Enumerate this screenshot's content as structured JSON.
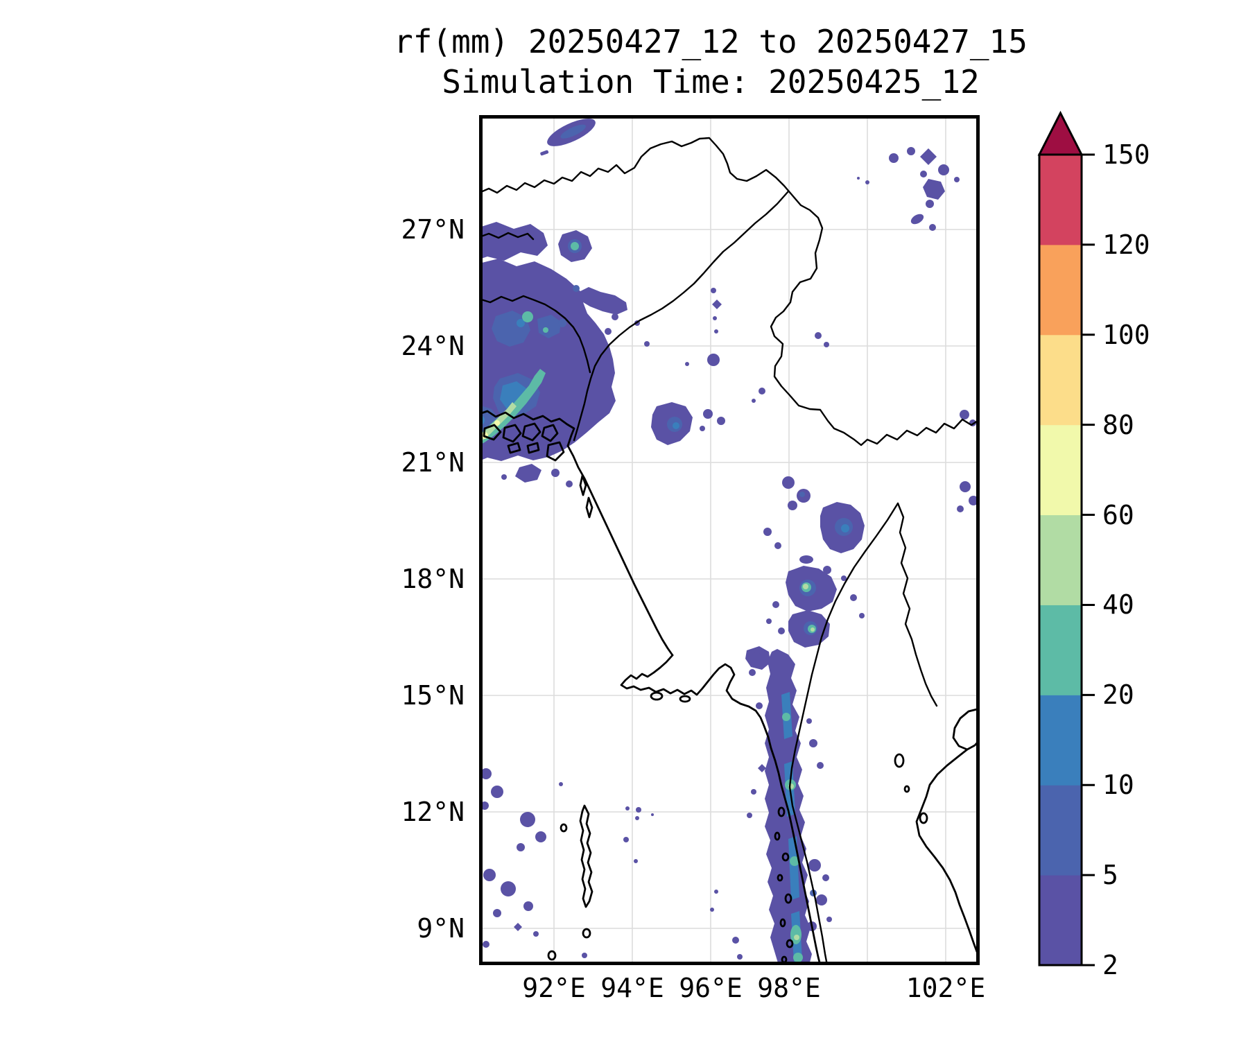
{
  "title": {
    "line1": "rf(mm) 20250427_12 to 20250427_15",
    "line2": "Simulation Time: 20250425_12"
  },
  "map_axes": {
    "x_ticks": [
      {
        "label": "92°E",
        "lon": 92
      },
      {
        "label": "94°E",
        "lon": 94
      },
      {
        "label": "96°E",
        "lon": 96
      },
      {
        "label": "98°E",
        "lon": 98
      },
      {
        "label": "102°E",
        "lon": 102
      }
    ],
    "x_grid_only_lons": [
      100
    ],
    "y_ticks": [
      {
        "label": "27°N",
        "lat": 27
      },
      {
        "label": "24°N",
        "lat": 24
      },
      {
        "label": "21°N",
        "lat": 21
      },
      {
        "label": "18°N",
        "lat": 18
      },
      {
        "label": "15°N",
        "lat": 15
      },
      {
        "label": "12°N",
        "lat": 12
      },
      {
        "label": "9°N",
        "lat": 9
      }
    ]
  },
  "colorbar": {
    "tick_labels": [
      "2",
      "5",
      "10",
      "20",
      "40",
      "60",
      "80",
      "100",
      "120",
      "150"
    ],
    "segment_colors_bottom_to_top": [
      "#5A52A5",
      "#4B64AE",
      "#3A7FBC",
      "#5DBBA6",
      "#B1DCA4",
      "#F1F9AB",
      "#FCDD8A",
      "#F9A15B",
      "#D3435F"
    ],
    "over_arrow_color": "#9E0E42",
    "outline_color": "#000000"
  },
  "chart_data": {
    "type": "heatmap",
    "subtype": "filled-contour precipitation map",
    "title": "rf(mm) 20250427_12 to 20250427_15",
    "subtitle": "Simulation Time: 20250425_12",
    "variable": "rainfall accumulation (mm)",
    "lon_range": [
      90.1,
      102.9
    ],
    "lat_range": [
      8.05,
      29.95
    ],
    "xlabel_ticks_deg_e": [
      92,
      94,
      96,
      98,
      102
    ],
    "ylabel_ticks_deg_n": [
      27,
      24,
      21,
      18,
      15,
      12,
      9
    ],
    "grid": true,
    "levels_mm": [
      2,
      5,
      10,
      20,
      40,
      60,
      80,
      100,
      120,
      150
    ],
    "level_colors": [
      "#5A52A5",
      "#4B64AE",
      "#3A7FBC",
      "#5DBBA6",
      "#B1DCA4",
      "#F1F9AB",
      "#FCDD8A",
      "#F9A15B",
      "#D3435F"
    ],
    "over_150_color": "#9E0E42",
    "colormap": "Spectral reversed, BoundaryNorm, extend max",
    "rain_regions": [
      {
        "area_lon": [
          90.1,
          93.8
        ],
        "area_lat": [
          21.5,
          27.3
        ],
        "desc": "large NW cluster over NE Bangladesh/Meghalaya",
        "peak_bin_mm": "60-80",
        "peak_near": [
          90.5,
          22.8
        ]
      },
      {
        "area_lon": [
          91.8,
          92.8
        ],
        "area_lat": [
          29.3,
          29.8
        ],
        "desc": "small elongated blob near top edge",
        "peak_bin_mm": "5-10"
      },
      {
        "area_lon": [
          100.3,
          102.6
        ],
        "area_lat": [
          27.0,
          29.3
        ],
        "desc": "scattered blobs NE corner (China)",
        "peak_bin_mm": "2-5"
      },
      {
        "area_lon": [
          95.8,
          99.2
        ],
        "area_lat": [
          20.0,
          22.6
        ],
        "desc": "scattered Shan-region blobs",
        "peak_bin_mm": "10-20"
      },
      {
        "area_lon": [
          99.0,
          102.9
        ],
        "area_lat": [
          17.0,
          19.3
        ],
        "desc": "east Thailand-border cluster",
        "peak_bin_mm": "10-20"
      },
      {
        "area_lon": [
          97.8,
          101.5
        ],
        "area_lat": [
          14.2,
          16.5
        ],
        "desc": "SE cluster with teal/green cores",
        "peak_bin_mm": "40-60",
        "peak_near": [
          100.0,
          15.7
        ]
      },
      {
        "area_lon": [
          97.3,
          99.2
        ],
        "area_lat": [
          8.05,
          14.0
        ],
        "desc": "rain band along Tenasserim peninsula coast",
        "peak_bin_mm": "40-60"
      },
      {
        "area_lon": [
          90.1,
          92.0
        ],
        "area_lat": [
          11.0,
          13.6
        ],
        "desc": "scattered ocean blobs SW (Bay of Bengal)",
        "peak_bin_mm": "5-10"
      },
      {
        "area_lon": [
          93.0,
          95.0
        ],
        "area_lat": [
          11.3,
          13.3
        ],
        "desc": "scattered small blobs Andaman Sea",
        "peak_bin_mm": "2-5"
      }
    ],
    "legend_position": "right vertical colorbar"
  }
}
